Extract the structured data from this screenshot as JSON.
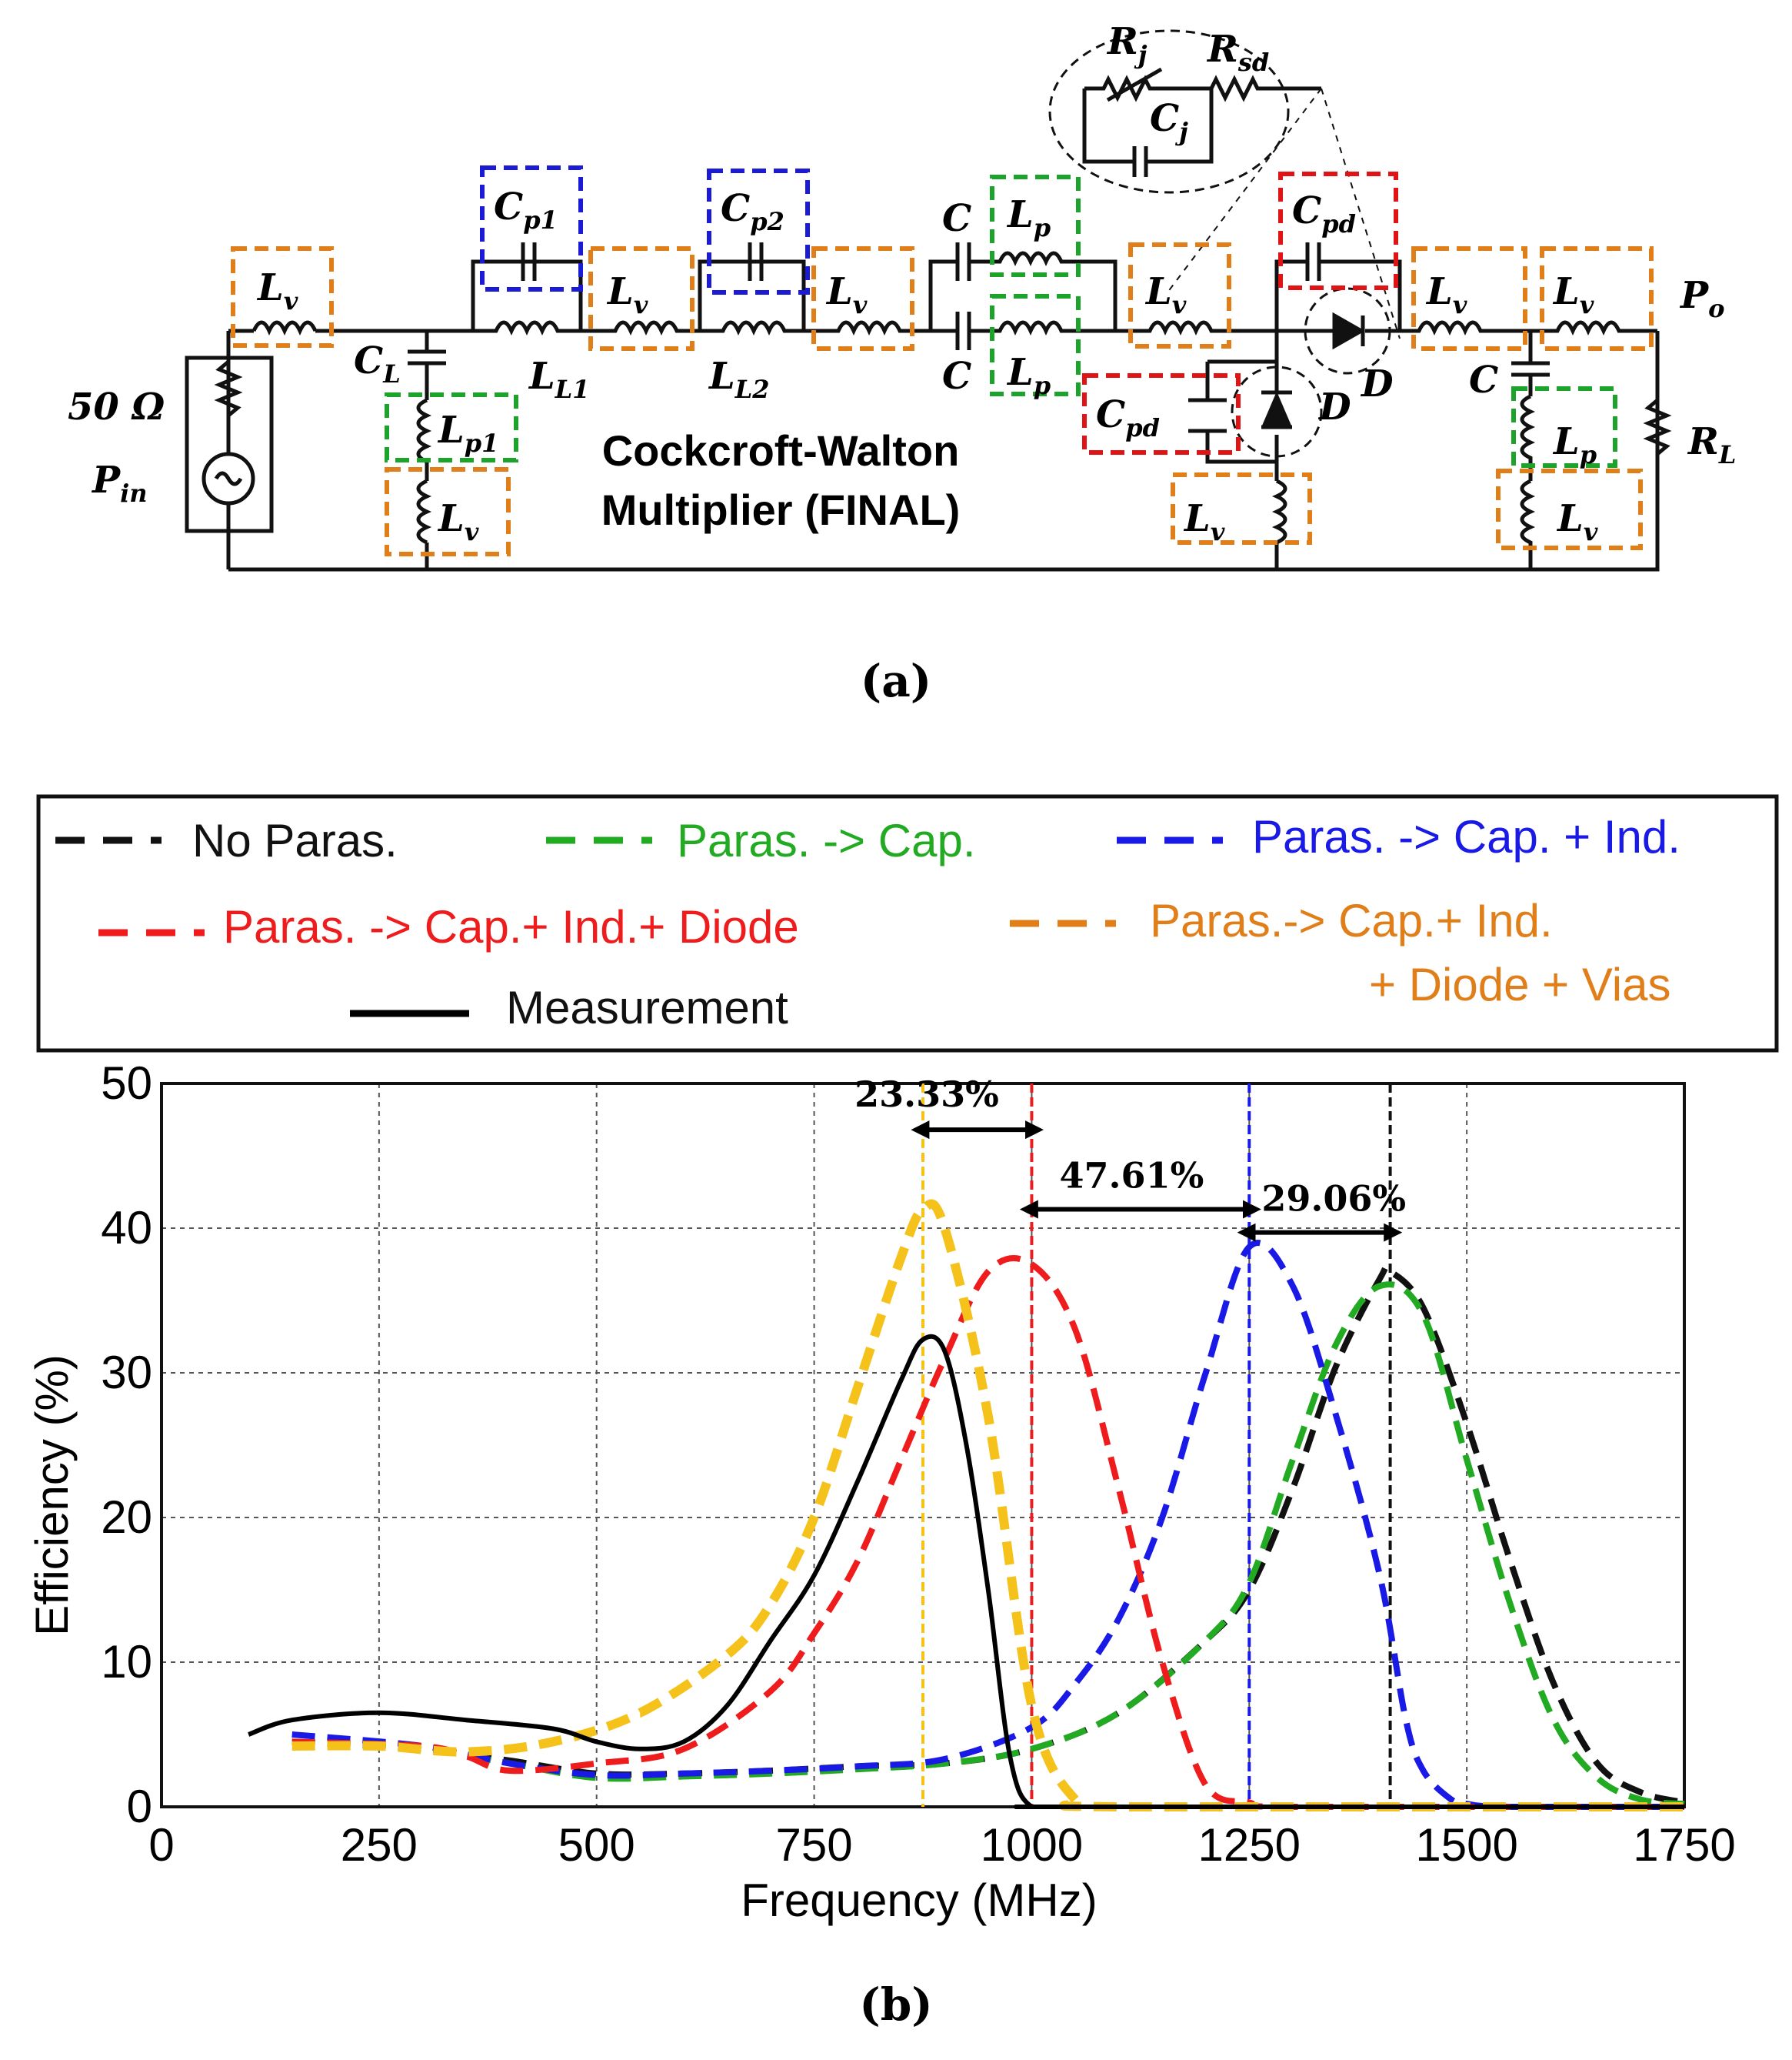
{
  "colors": {
    "orange_box": "#e07f1a",
    "blue_box": "#1b1bd6",
    "green_box": "#1ca32c",
    "red_box": "#e01414",
    "no_paras": "#111111",
    "cap": "#22aa22",
    "cap_ind": "#1a1ae6",
    "cap_ind_diode": "#ee1c1c",
    "vias": "#f5c21c",
    "vias_legend_text": "#e07f1a",
    "measurement": "#000000"
  },
  "circuit": {
    "title_line1": "Cockcroft-Walton",
    "title_line2": "Multiplier (FINAL)",
    "source_resistance": "50 Ω",
    "labels": {
      "pin": {
        "main": "P",
        "sub": "in"
      },
      "po": {
        "main": "P",
        "sub": "o"
      },
      "rl": {
        "main": "R",
        "sub": "L"
      },
      "cl": {
        "main": "C",
        "sub": "L"
      },
      "ll1": {
        "main": "L",
        "sub": "L1"
      },
      "ll2": {
        "main": "L",
        "sub": "L2"
      },
      "lv": {
        "main": "L",
        "sub": "v"
      },
      "lp": {
        "main": "L",
        "sub": "p"
      },
      "lp1": {
        "main": "L",
        "sub": "p1"
      },
      "cp1": {
        "main": "C",
        "sub": "p1"
      },
      "cp2": {
        "main": "C",
        "sub": "p2"
      },
      "cpd": {
        "main": "C",
        "sub": "pd"
      },
      "c": "C",
      "d": "D",
      "rj": {
        "main": "R",
        "sub": "j"
      },
      "rsd": {
        "main": "R",
        "sub": "sd"
      },
      "cj": {
        "main": "C",
        "sub": "j"
      }
    },
    "caption": "(a)"
  },
  "legend": {
    "no_paras": "No Paras.",
    "cap": "Paras. -> Cap.",
    "cap_ind": "Paras. -> Cap. + Ind.",
    "cap_ind_diode": "Paras. -> Cap.+ Ind.+ Diode",
    "vias_line1": "Paras.-> Cap.+ Ind.",
    "vias_line2": "+ Diode + Vias",
    "measurement": "Measurement"
  },
  "chart_data": {
    "type": "line",
    "xlabel": "Frequency (MHz)",
    "ylabel": "Efficiency (%)",
    "xlim": [
      0,
      1750
    ],
    "ylim": [
      0,
      50
    ],
    "xticks": [
      0,
      250,
      500,
      750,
      1000,
      1250,
      1500,
      1750
    ],
    "yticks": [
      0,
      10,
      20,
      30,
      40,
      50
    ],
    "grid": true,
    "legend_position": "top",
    "series": [
      {
        "name": "No Paras.",
        "style": "dashed",
        "x": [
          150,
          300,
          400,
          500,
          600,
          700,
          800,
          900,
          1000,
          1100,
          1200,
          1250,
          1300,
          1350,
          1400,
          1412,
          1450,
          1500,
          1550,
          1600,
          1650,
          1700,
          1750
        ],
        "y": [
          4.5,
          4.0,
          3.2,
          2.3,
          2.3,
          2.5,
          2.8,
          3.0,
          4.0,
          6.5,
          11.5,
          15.0,
          22.0,
          30.5,
          36.5,
          37.0,
          34.5,
          26.5,
          17.0,
          8.5,
          3.0,
          1.0,
          0.3
        ]
      },
      {
        "name": "Paras. -> Cap.",
        "style": "dashed",
        "x": [
          150,
          300,
          400,
          500,
          600,
          700,
          800,
          900,
          1000,
          1100,
          1200,
          1250,
          1300,
          1350,
          1400,
          1450,
          1500,
          1550,
          1600,
          1650,
          1700,
          1750
        ],
        "y": [
          4.5,
          4.0,
          3.0,
          2.0,
          2.1,
          2.3,
          2.6,
          3.0,
          4.0,
          6.5,
          11.5,
          15.5,
          24.0,
          32.0,
          36.0,
          34.0,
          24.0,
          14.0,
          6.0,
          2.0,
          0.5,
          0.2
        ]
      },
      {
        "name": "Paras. -> Cap. + Ind.",
        "style": "dashed",
        "x": [
          150,
          300,
          400,
          500,
          600,
          700,
          800,
          900,
          1000,
          1050,
          1100,
          1150,
          1200,
          1250,
          1300,
          1350,
          1400,
          1430,
          1450,
          1480,
          1500,
          1550,
          1750
        ],
        "y": [
          5.0,
          4.2,
          3.0,
          2.2,
          2.3,
          2.5,
          2.8,
          3.3,
          5.5,
          8.5,
          13.0,
          20.0,
          30.0,
          38.7,
          36.0,
          27.0,
          16.0,
          6.0,
          2.5,
          0.6,
          0.2,
          0.0,
          0.0
        ]
      },
      {
        "name": "Paras. -> Cap.+ Ind.+ Diode",
        "style": "dashed",
        "x": [
          150,
          300,
          350,
          400,
          500,
          600,
          700,
          750,
          800,
          850,
          900,
          950,
          1000,
          1050,
          1100,
          1150,
          1200,
          1250,
          1300,
          1750
        ],
        "y": [
          4.5,
          4.2,
          3.5,
          2.5,
          3.0,
          4.0,
          8.0,
          12.0,
          17.0,
          24.0,
          31.0,
          37.0,
          37.5,
          33.0,
          22.0,
          10.0,
          1.5,
          0.3,
          0.0,
          0.0
        ]
      },
      {
        "name": "Paras.-> Cap.+ Ind. + Diode + Vias",
        "style": "dashed",
        "x": [
          150,
          250,
          350,
          450,
          550,
          650,
          700,
          750,
          800,
          850,
          875,
          900,
          950,
          1000,
          1050,
          1100,
          1750
        ],
        "y": [
          4.2,
          4.2,
          3.8,
          4.5,
          6.5,
          10.5,
          14.0,
          20.0,
          29.0,
          38.0,
          41.3,
          40.0,
          27.0,
          7.0,
          0.5,
          0.0,
          0.0
        ]
      },
      {
        "name": "Measurement",
        "style": "solid",
        "x": [
          100,
          150,
          250,
          350,
          450,
          500,
          550,
          600,
          650,
          700,
          750,
          800,
          850,
          875,
          900,
          925,
          950,
          975,
          1000,
          1050,
          1750
        ],
        "y": [
          5.0,
          6.0,
          6.5,
          6.0,
          5.4,
          4.5,
          4.0,
          4.5,
          7.0,
          11.5,
          16.0,
          22.5,
          29.5,
          32.3,
          31.5,
          25.0,
          15.0,
          3.5,
          0.0,
          0.0,
          0.0
        ]
      }
    ],
    "vlines": [
      {
        "x": 875,
        "series": "Paras.-> Cap.+ Ind. + Diode + Vias"
      },
      {
        "x": 1000,
        "series": "Paras. -> Cap.+ Ind.+ Diode"
      },
      {
        "x": 1250,
        "series": "Paras. -> Cap. + Ind."
      },
      {
        "x": 1412,
        "series": "No Paras."
      }
    ],
    "annotations": [
      {
        "text": "23.33%",
        "x_from": 875,
        "x_to": 1000,
        "y": 46.8
      },
      {
        "text": "47.61%",
        "x_from": 1000,
        "x_to": 1250,
        "y": 41.3
      },
      {
        "text": "29.06%",
        "x_from": 1250,
        "x_to": 1412,
        "y": 39.7
      }
    ],
    "caption": "(b)"
  }
}
